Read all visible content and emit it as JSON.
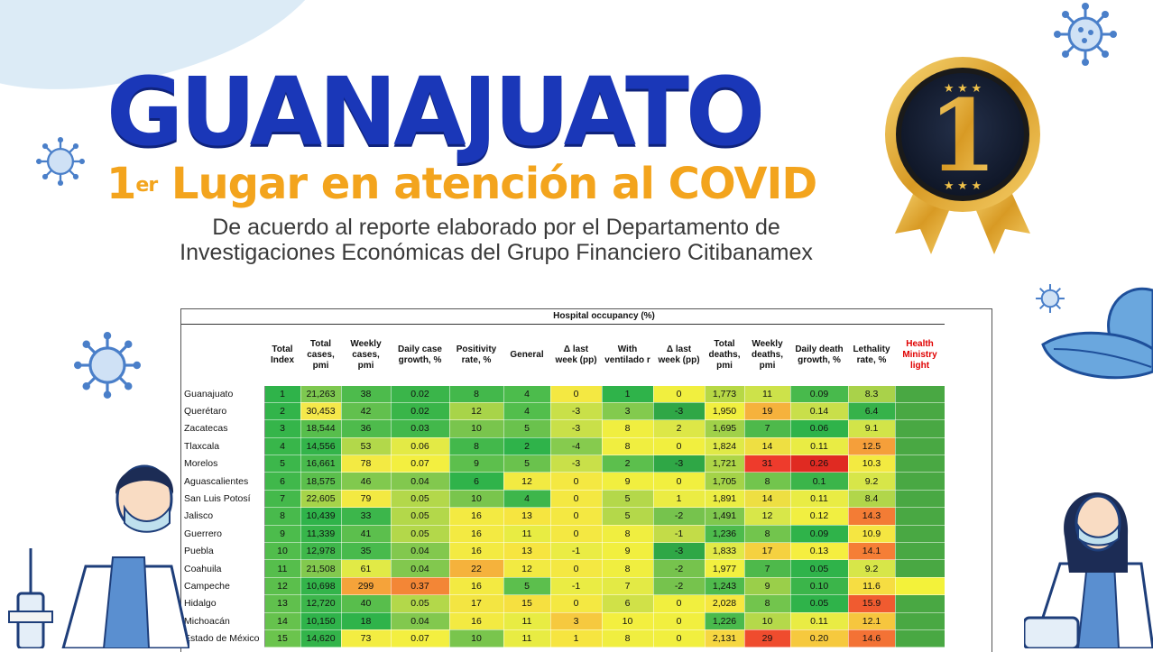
{
  "title": "GUANAJUATO",
  "subtitle_prefix": "1",
  "subtitle_sup": "er",
  "subtitle_rest": " Lugar en atención al COVID",
  "description_line1": "De acuerdo al reporte elaborado por el Departamento de",
  "description_line2": "Investigaciones Económicas del Grupo Financiero Citibanamex",
  "medal_number": "1",
  "colors": {
    "title_blue": "#1a37b8",
    "subtitle_orange": "#f3a41d",
    "medal_gold": "#e8b53a"
  },
  "table": {
    "group_header": "Hospital occupancy (%)",
    "columns": [
      "",
      "Total Index",
      "Total cases, pmi",
      "Weekly cases, pmi",
      "Daily case growth, %",
      "Positivity rate, %",
      "General",
      "Δ last week (pp)",
      "With ventilado r",
      "Δ last week (pp)",
      "Total deaths, pmi",
      "Weekly deaths, pmi",
      "Daily death growth, %",
      "Lethality rate, %",
      "Health Ministry light"
    ],
    "rows": [
      {
        "state": "Guanajuato",
        "cells": [
          "1",
          "21,263",
          "38",
          "0.02",
          "8",
          "4",
          "0",
          "1",
          "0",
          "1,773",
          "11",
          "0.09",
          "8.3",
          ""
        ],
        "colors": [
          "#2fb34a",
          "#7ec850",
          "#4dbb4c",
          "#3ab54a",
          "#43b84b",
          "#4cbc4c",
          "#f4e842",
          "#2fb34a",
          "#f1ef3f",
          "#b7d845",
          "#cde24a",
          "#48ba4c",
          "#a9d24a",
          "#49a843"
        ]
      },
      {
        "state": "Querétaro",
        "cells": [
          "2",
          "30,453",
          "42",
          "0.02",
          "12",
          "4",
          "-3",
          "3",
          "-3",
          "1,950",
          "19",
          "0.14",
          "6.4",
          ""
        ],
        "colors": [
          "#32b44a",
          "#f5e84a",
          "#62c04e",
          "#39b549",
          "#a8d449",
          "#52be4c",
          "#c9e049",
          "#83ca4e",
          "#2fa746",
          "#f1ef3f",
          "#f6b23c",
          "#c9df4a",
          "#36b24a",
          "#49a843"
        ]
      },
      {
        "state": "Zacatecas",
        "cells": [
          "3",
          "18,544",
          "36",
          "0.03",
          "10",
          "5",
          "-3",
          "8",
          "2",
          "1,695",
          "7",
          "0.06",
          "9.1",
          ""
        ],
        "colors": [
          "#35b54a",
          "#57be4c",
          "#4ebb4c",
          "#43b84b",
          "#79c54d",
          "#6ac24d",
          "#c9e049",
          "#f0ee40",
          "#dde747",
          "#a0d149",
          "#4eb94b",
          "#2fb34a",
          "#d2e449",
          "#49a843"
        ]
      },
      {
        "state": "Tlaxcala",
        "cells": [
          "4",
          "14,556",
          "53",
          "0.06",
          "8",
          "2",
          "-4",
          "8",
          "0",
          "1,824",
          "14",
          "0.11",
          "12.5",
          ""
        ],
        "colors": [
          "#38b64a",
          "#33b44a",
          "#b2d84a",
          "#e3ea45",
          "#43b84b",
          "#2fb34a",
          "#86cb4e",
          "#f0ee40",
          "#f1ef3f",
          "#dfe947",
          "#eedf42",
          "#e9ec44",
          "#f59f3a",
          "#49a843"
        ]
      },
      {
        "state": "Morelos",
        "cells": [
          "5",
          "16,661",
          "78",
          "0.07",
          "9",
          "5",
          "-3",
          "2",
          "-3",
          "1,721",
          "31",
          "0.26",
          "10.3",
          ""
        ],
        "colors": [
          "#3cb74b",
          "#48ba4c",
          "#f3ea43",
          "#f3ef40",
          "#5dbf4d",
          "#6ac24d",
          "#c9e049",
          "#5cbf4d",
          "#2fa746",
          "#aed547",
          "#ee3b2c",
          "#e02a22",
          "#f3ea41",
          "#49a843"
        ]
      },
      {
        "state": "Aguascalientes",
        "cells": [
          "6",
          "18,575",
          "46",
          "0.04",
          "6",
          "12",
          "0",
          "9",
          "0",
          "1,705",
          "8",
          "0.1",
          "9.2",
          ""
        ],
        "colors": [
          "#40b84b",
          "#5bbf4c",
          "#81c94e",
          "#82c84e",
          "#2fb34a",
          "#f2ea42",
          "#f4e842",
          "#f1ef3f",
          "#f1ef3f",
          "#a4d348",
          "#72c54d",
          "#3bb54a",
          "#d7e649",
          "#49a843"
        ]
      },
      {
        "state": "San Luis Potosí",
        "cells": [
          "7",
          "22,605",
          "79",
          "0.05",
          "10",
          "4",
          "0",
          "5",
          "1",
          "1,891",
          "14",
          "0.11",
          "8.4",
          ""
        ],
        "colors": [
          "#44b94b",
          "#a6d449",
          "#f3e942",
          "#b3d84a",
          "#79c54d",
          "#3db64b",
          "#f4e842",
          "#b4d84a",
          "#ebec43",
          "#ebed43",
          "#eedf42",
          "#e9ec44",
          "#b1d64a",
          "#49a843"
        ]
      },
      {
        "state": "Jalisco",
        "cells": [
          "8",
          "10,439",
          "33",
          "0.05",
          "16",
          "13",
          "0",
          "5",
          "-2",
          "1,491",
          "12",
          "0.12",
          "14.3",
          ""
        ],
        "colors": [
          "#48ba4c",
          "#2fb34a",
          "#3cb64b",
          "#b3d84a",
          "#f3ea42",
          "#f6e540",
          "#f4e842",
          "#b4d84a",
          "#76c34d",
          "#7fc84e",
          "#d8e749",
          "#f1ef41",
          "#f37c35",
          "#49a843"
        ]
      },
      {
        "state": "Guerrero",
        "cells": [
          "9",
          "11,339",
          "41",
          "0.05",
          "16",
          "11",
          "0",
          "8",
          "-1",
          "1,236",
          "8",
          "0.09",
          "10.9",
          ""
        ],
        "colors": [
          "#4cbc4c",
          "#37b54a",
          "#5cbf4d",
          "#b3d84a",
          "#f3ea42",
          "#e8ec43",
          "#f4e842",
          "#f0ee40",
          "#c3dc48",
          "#4dbb4c",
          "#72c54d",
          "#2fb34a",
          "#f5e642",
          "#49a843"
        ]
      },
      {
        "state": "Puebla",
        "cells": [
          "10",
          "12,978",
          "35",
          "0.04",
          "16",
          "13",
          "-1",
          "9",
          "-3",
          "1,833",
          "17",
          "0.13",
          "14.1",
          ""
        ],
        "colors": [
          "#51bd4c",
          "#3fb74b",
          "#48ba4c",
          "#82c84e",
          "#f3ea42",
          "#f6e540",
          "#eaec44",
          "#f1ef3f",
          "#2fa746",
          "#e1e947",
          "#f5d140",
          "#f5ee40",
          "#f57e36",
          "#49a843"
        ]
      },
      {
        "state": "Coahuila",
        "cells": [
          "11",
          "21,508",
          "61",
          "0.04",
          "22",
          "12",
          "0",
          "8",
          "-2",
          "1,977",
          "7",
          "0.05",
          "9.2",
          ""
        ],
        "colors": [
          "#56be4c",
          "#82c94e",
          "#e1ea46",
          "#82c84e",
          "#f5b23c",
          "#f2ea42",
          "#f4e842",
          "#f0ee40",
          "#76c34d",
          "#f2f040",
          "#4eb94b",
          "#2fb34a",
          "#d7e649",
          "#49a843"
        ]
      },
      {
        "state": "Campeche",
        "cells": [
          "12",
          "10,698",
          "299",
          "0.37",
          "16",
          "5",
          "-1",
          "7",
          "-2",
          "1,243",
          "9",
          "0.10",
          "11.6",
          ""
        ],
        "colors": [
          "#5bbf4c",
          "#33b44a",
          "#f5a33a",
          "#f38636",
          "#f3ea42",
          "#5cbf4d",
          "#eaec44",
          "#e3ea45",
          "#76c34d",
          "#4fbb4c",
          "#9acf4a",
          "#3bb54a",
          "#f6dd42",
          "#f3f23a"
        ]
      },
      {
        "state": "Hidalgo",
        "cells": [
          "13",
          "12,720",
          "40",
          "0.05",
          "17",
          "15",
          "0",
          "6",
          "0",
          "2,028",
          "8",
          "0.05",
          "15.9",
          ""
        ],
        "colors": [
          "#60c04d",
          "#3cb64b",
          "#58be4c",
          "#b3d84a",
          "#f3e542",
          "#f6e040",
          "#f4e842",
          "#d0e148",
          "#f1ef3f",
          "#f6e740",
          "#72c54d",
          "#2fb34a",
          "#f05b30",
          "#49a843"
        ]
      },
      {
        "state": "Michoacán",
        "cells": [
          "14",
          "10,150",
          "18",
          "0.04",
          "16",
          "11",
          "3",
          "10",
          "0",
          "1,226",
          "10",
          "0.11",
          "12.1",
          ""
        ],
        "colors": [
          "#66c24d",
          "#2fb34a",
          "#2fb34a",
          "#82c84e",
          "#f3ea42",
          "#e8ec43",
          "#f6c93f",
          "#f3ef3f",
          "#f1ef3f",
          "#49ba4c",
          "#b5d94a",
          "#e9ec44",
          "#f6c63e",
          "#49a843"
        ]
      },
      {
        "state": "Estado de México",
        "cells": [
          "15",
          "14,620",
          "73",
          "0.07",
          "10",
          "11",
          "1",
          "8",
          "0",
          "2,131",
          "29",
          "0.20",
          "14.6",
          ""
        ],
        "colors": [
          "#6bc44d",
          "#33b44a",
          "#f3ed42",
          "#f3ef40",
          "#79c54d",
          "#e8ec43",
          "#f6e540",
          "#f0ee40",
          "#f1ef3f",
          "#f6d741",
          "#ef4c2e",
          "#f6c93e",
          "#f37235",
          "#49a843"
        ]
      }
    ]
  }
}
